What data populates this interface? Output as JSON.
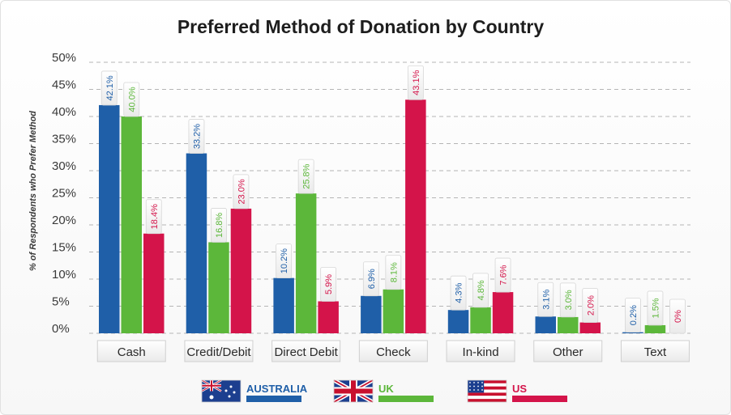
{
  "chart_data": {
    "type": "bar",
    "title": "Preferred Method of Donation by Country",
    "ylabel": "% of Respondents who Prefer Method",
    "ylim": [
      0,
      50
    ],
    "y_ticks": [
      "0%",
      "5%",
      "10%",
      "15%",
      "20%",
      "25%",
      "30%",
      "35%",
      "40%",
      "45%",
      "50%"
    ],
    "grid": "horizontal dashed",
    "legend_position": "bottom",
    "categories": [
      "Cash",
      "Credit/Debit",
      "Direct Debit",
      "Check",
      "In-kind",
      "Other",
      "Text"
    ],
    "series": [
      {
        "name": "AUSTRALIA",
        "color": "#1f5fa8",
        "values": [
          42.1,
          33.2,
          10.2,
          6.9,
          4.3,
          3.1,
          0.2
        ],
        "labels": [
          "42.1%",
          "33.2%",
          "10.2%",
          "6.9%",
          "4.3%",
          "3.1%",
          "0.2%"
        ]
      },
      {
        "name": "UK",
        "color": "#5cb73a",
        "values": [
          40.0,
          16.8,
          25.8,
          8.1,
          4.8,
          3.0,
          1.5
        ],
        "labels": [
          "40.0%",
          "16.8%",
          "25.8%",
          "8.1%",
          "4.8%",
          "3.0%",
          "1.5%"
        ]
      },
      {
        "name": "US",
        "color": "#d4144a",
        "values": [
          18.4,
          23.0,
          5.9,
          43.1,
          7.6,
          2.0,
          0
        ],
        "labels": [
          "18.4%",
          "23.0%",
          "5.9%",
          "43.1%",
          "7.6%",
          "2.0%",
          "0%"
        ]
      }
    ]
  }
}
